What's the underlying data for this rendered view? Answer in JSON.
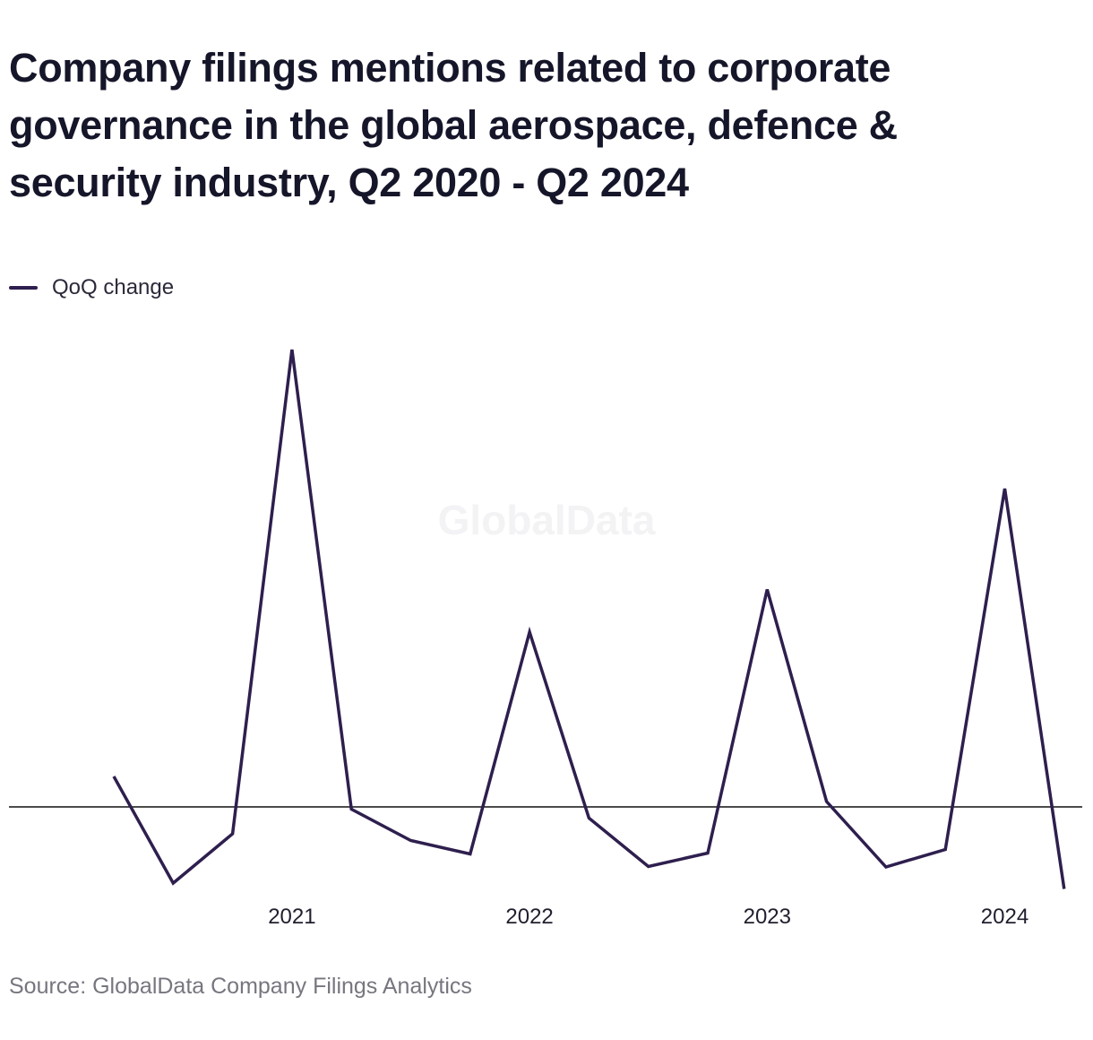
{
  "chart_data": {
    "type": "line",
    "title": "Company filings mentions related to corporate governance in the global aerospace, defence & security industry, Q2 2020 - Q2 2024",
    "xlabel": "",
    "ylabel": "",
    "x": [
      "Q2 2020",
      "Q3 2020",
      "Q4 2020",
      "Q1 2021",
      "Q2 2021",
      "Q3 2021",
      "Q4 2021",
      "Q1 2022",
      "Q2 2022",
      "Q3 2022",
      "Q4 2022",
      "Q1 2023",
      "Q2 2023",
      "Q3 2023",
      "Q4 2023",
      "Q1 2024",
      "Q2 2024"
    ],
    "x_tick_labels": [
      {
        "label": "2021",
        "x": "Q1 2021"
      },
      {
        "label": "2022",
        "x": "Q1 2022"
      },
      {
        "label": "2023",
        "x": "Q1 2023"
      },
      {
        "label": "2024",
        "x": "Q1 2024"
      }
    ],
    "series": [
      {
        "name": "QoQ change",
        "color": "#2e1f4e",
        "values": [
          6.8,
          -17,
          -6,
          102,
          -0.5,
          -7.5,
          -10.5,
          39,
          -2.5,
          -13.3,
          -10.3,
          48.5,
          1.2,
          -13.4,
          -9.5,
          71,
          -18.3
        ]
      }
    ],
    "ylim": [
      -20,
      110
    ],
    "zero_line": true,
    "grid": false,
    "legend": "top-left",
    "watermark": "GlobalData"
  },
  "source": "Source: GlobalData Company Filings Analytics"
}
